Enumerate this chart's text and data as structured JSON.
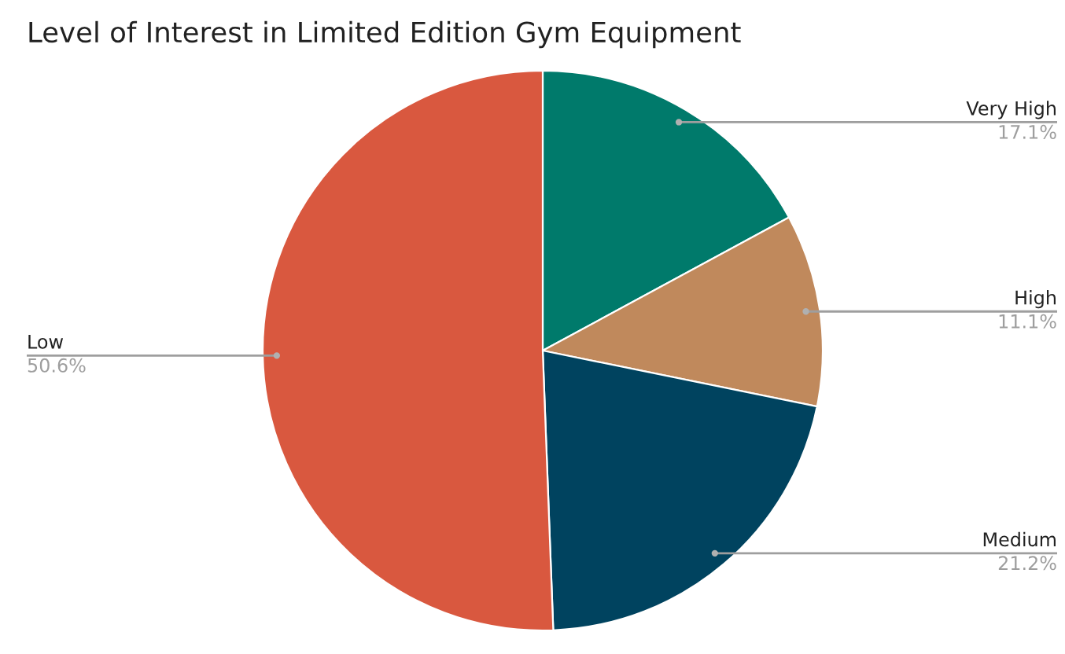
{
  "chart_data": {
    "type": "pie",
    "title": "Level of Interest in Limited Edition Gym Equipment",
    "categories": [
      "Very High",
      "High",
      "Medium",
      "Low"
    ],
    "values": [
      17.1,
      11.1,
      21.2,
      50.6
    ],
    "colors": [
      "#007a6b",
      "#c0895c",
      "#00435f",
      "#d9583f"
    ],
    "value_labels": [
      "17.1%",
      "11.1%",
      "21.2%",
      "50.6%"
    ]
  }
}
